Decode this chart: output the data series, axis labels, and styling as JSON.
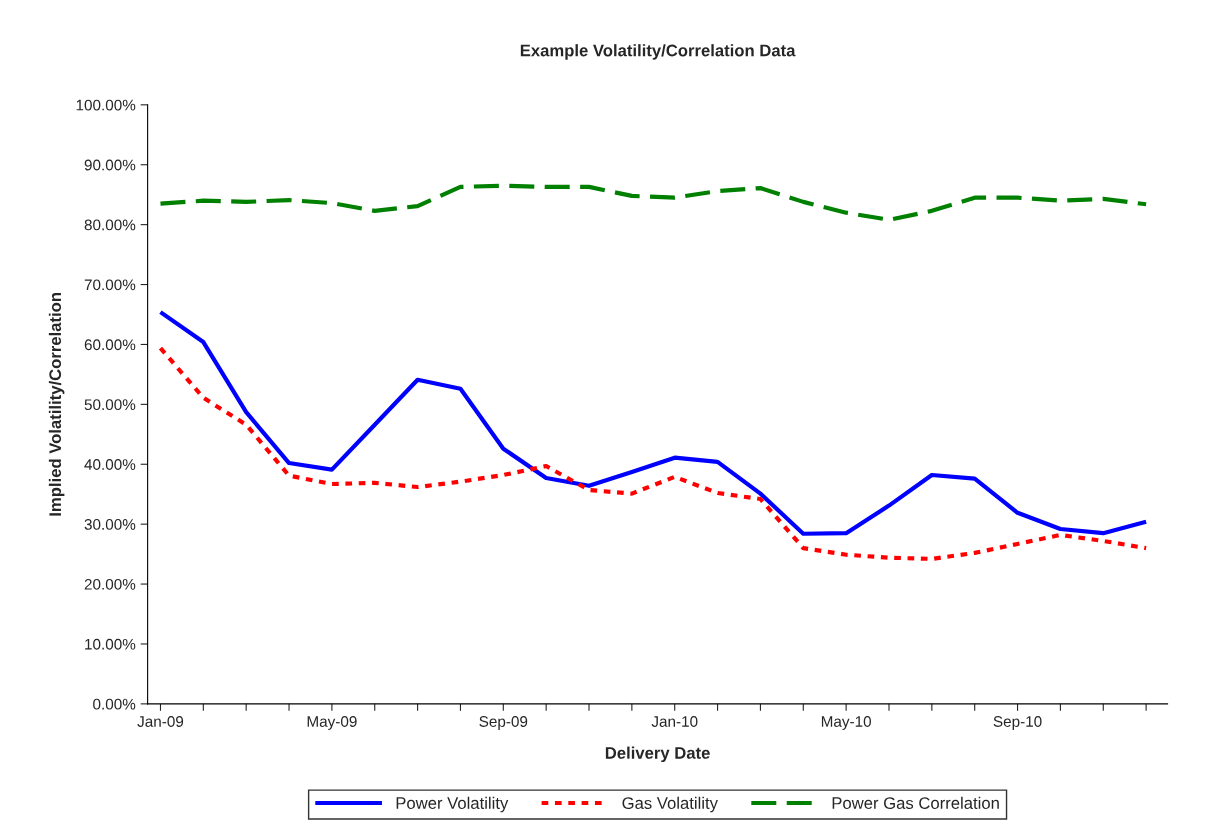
{
  "chart_data": {
    "type": "line",
    "title": "Example Volatility/Correlation Data",
    "xlabel": "Delivery Date",
    "ylabel": "Implied Volatility/Correlation",
    "categories": [
      "Jan-09",
      null,
      null,
      null,
      "May-09",
      null,
      null,
      null,
      "Sep-09",
      null,
      null,
      null,
      "Jan-10",
      null,
      null,
      null,
      "May-10",
      null,
      null,
      null,
      "Sep-10",
      null,
      null,
      null
    ],
    "series": [
      {
        "name": "Power Volatility",
        "color": "#0000ff",
        "line_style": "solid",
        "values": [
          65.4,
          60.4,
          48.7,
          40.2,
          39.1,
          46.6,
          54.1,
          52.6,
          42.6,
          37.7,
          36.4,
          38.7,
          41.1,
          40.4,
          35.1,
          28.4,
          28.5,
          33.1,
          38.2,
          37.6,
          31.9,
          29.2,
          28.5,
          30.4
        ]
      },
      {
        "name": "Gas Volatility",
        "color": "#ff0000",
        "line_style": "dotted",
        "values": [
          59.4,
          51.1,
          46.6,
          38.1,
          36.7,
          36.9,
          36.2,
          37.1,
          38.2,
          39.7,
          35.7,
          35.1,
          37.9,
          35.2,
          34.2,
          26.0,
          24.9,
          24.4,
          24.2,
          25.2,
          26.7,
          28.2,
          27.2,
          26.0
        ]
      },
      {
        "name": "Power Gas Correlation",
        "color": "#008000",
        "line_style": "dashed",
        "values": [
          83.5,
          84.0,
          83.8,
          84.1,
          83.6,
          82.3,
          83.1,
          86.3,
          86.5,
          86.3,
          86.3,
          84.8,
          84.5,
          85.6,
          86.1,
          83.8,
          82.0,
          80.8,
          82.3,
          84.5,
          84.5,
          84.0,
          84.3,
          83.4
        ]
      }
    ],
    "ylim": [
      0,
      100
    ],
    "yticks": [
      {
        "value": 0,
        "label": "0.00%"
      },
      {
        "value": 10,
        "label": "10.00%"
      },
      {
        "value": 20,
        "label": "20.00%"
      },
      {
        "value": 30,
        "label": "30.00%"
      },
      {
        "value": 40,
        "label": "40.00%"
      },
      {
        "value": 50,
        "label": "50.00%"
      },
      {
        "value": 60,
        "label": "60.00%"
      },
      {
        "value": 70,
        "label": "70.00%"
      },
      {
        "value": 80,
        "label": "80.00%"
      },
      {
        "value": 90,
        "label": "90.00%"
      },
      {
        "value": 100,
        "label": "100.00%"
      }
    ],
    "grid": false,
    "legend": "bottom",
    "marker": "none"
  }
}
